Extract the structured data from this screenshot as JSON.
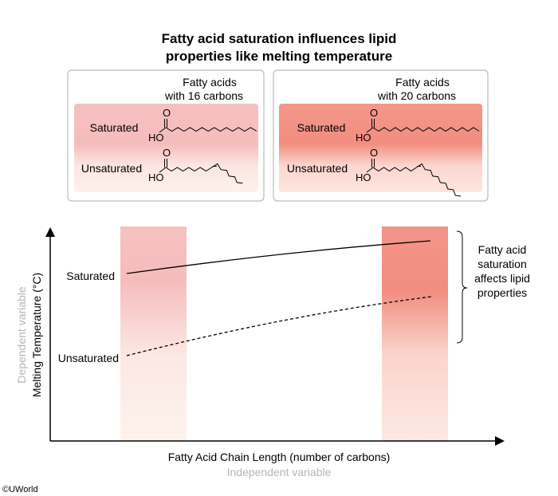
{
  "title": {
    "line1": "Fatty acid saturation influences lipid",
    "line2": "properties like melting temperature"
  },
  "panels": [
    {
      "heading1": "Fatty acids",
      "heading2": "with 16 carbons",
      "saturated_label": "Saturated",
      "unsaturated_label": "Unsaturated",
      "o_label": "O",
      "ho_label": "HO",
      "carbons": 16
    },
    {
      "heading1": "Fatty acids",
      "heading2": "with 20 carbons",
      "saturated_label": "Saturated",
      "unsaturated_label": "Unsaturated",
      "o_label": "O",
      "ho_label": "HO",
      "carbons": 20
    }
  ],
  "graph": {
    "saturated_label": "Saturated",
    "unsaturated_label": "Unsaturated",
    "annotation": [
      "Fatty acid",
      "saturation",
      "affects lipid",
      "properties"
    ],
    "x_label": "Fatty Acid Chain Length (number of carbons)",
    "x_sublabel": "Independent variable",
    "y_label": "Melting Temperature (°C)",
    "y_sublabel": "Dependent variable"
  },
  "copyright": "©UWorld",
  "colors": {
    "light_pink": "#f5bcbc",
    "salmon": "#f28d80",
    "pale": "#fdf1ea"
  }
}
